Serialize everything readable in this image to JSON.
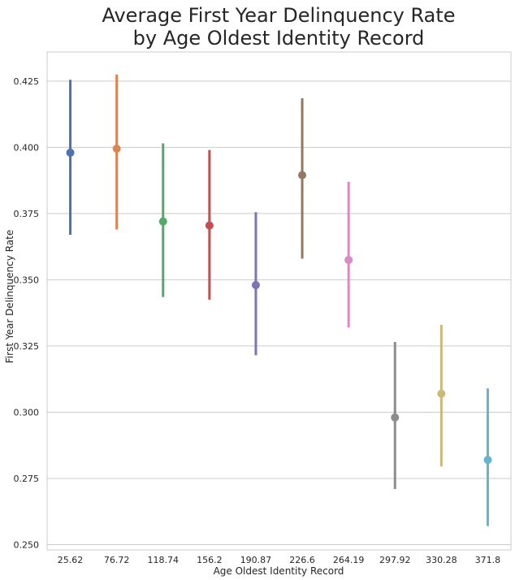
{
  "chart_data": {
    "type": "pointplot",
    "title_lines": [
      "Average First Year Delinquency Rate",
      "by Age Oldest Identity Record"
    ],
    "xlabel": "Age Oldest Identity Record",
    "ylabel": "First Year Delinquency Rate",
    "categories": [
      "25.62",
      "76.72",
      "118.74",
      "156.2",
      "190.87",
      "226.6",
      "264.19",
      "297.92",
      "330.28",
      "371.8"
    ],
    "values": [
      0.398,
      0.3995,
      0.372,
      0.3705,
      0.348,
      0.3895,
      0.3575,
      0.298,
      0.307,
      0.282
    ],
    "ci_low": [
      0.367,
      0.369,
      0.3435,
      0.3425,
      0.3215,
      0.358,
      0.332,
      0.271,
      0.2795,
      0.257
    ],
    "ci_high": [
      0.4255,
      0.4275,
      0.4015,
      0.399,
      0.3755,
      0.4185,
      0.387,
      0.3265,
      0.333,
      0.309
    ],
    "colors": [
      "#4c72b0",
      "#dd8452",
      "#55a868",
      "#c44e52",
      "#8172b3",
      "#937860",
      "#da8bc3",
      "#8c8c8c",
      "#ccb974",
      "#64b5cd"
    ],
    "yticks": [
      "0.250",
      "0.275",
      "0.300",
      "0.325",
      "0.350",
      "0.375",
      "0.400",
      "0.425"
    ],
    "ylim": [
      0.248,
      0.436
    ],
    "grid": "horizontal",
    "legend": "none"
  }
}
